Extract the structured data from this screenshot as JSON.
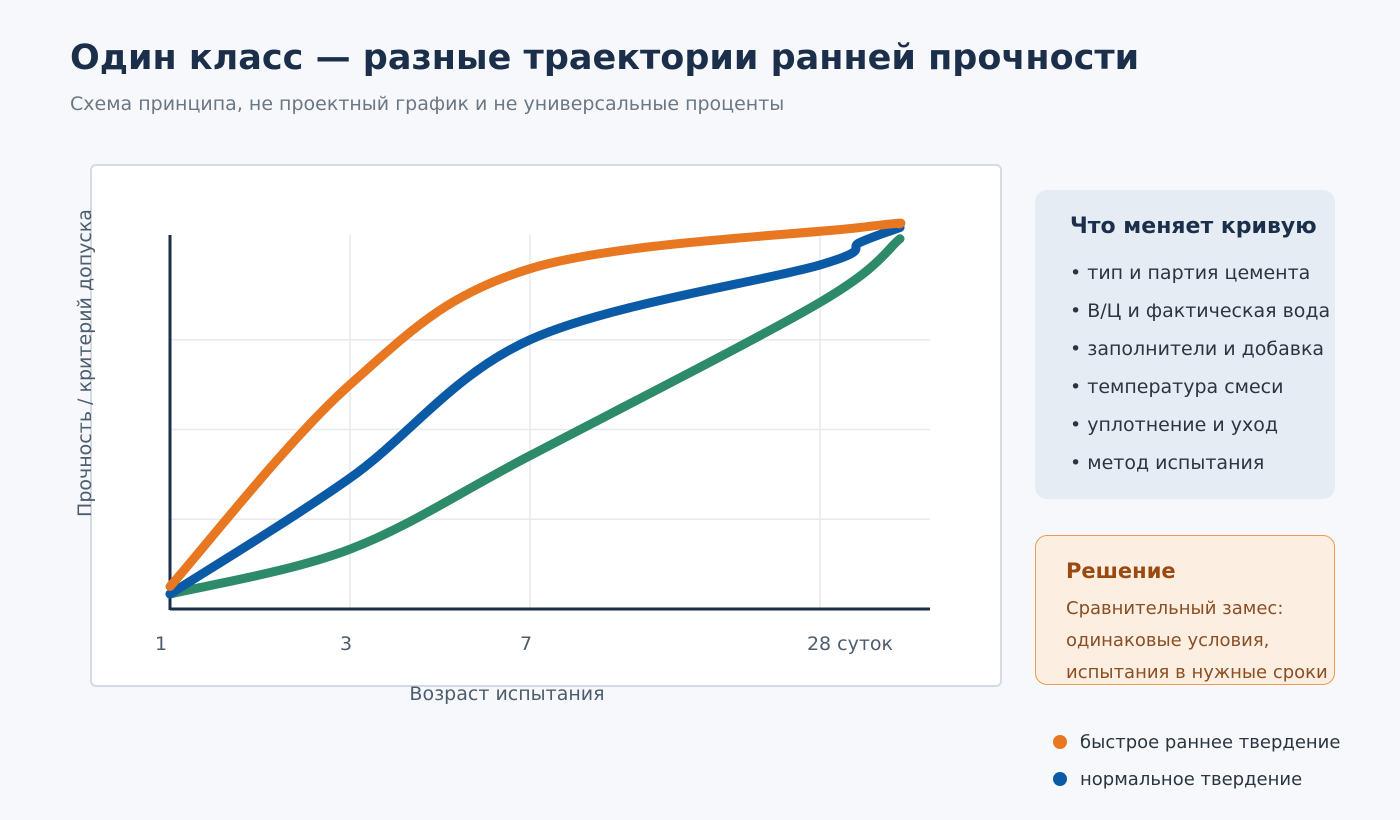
{
  "header": {
    "title": "Один класс — разные траектории ранней прочности",
    "subtitle": "Схема принципа, не проектный график и не универсальные проценты"
  },
  "chart_data": {
    "type": "line",
    "xlabel": "Возраст испытания",
    "ylabel": "Прочность / критерий допуска",
    "x_ticks": [
      "1",
      "3",
      "7",
      "28 суток"
    ],
    "ylim": [
      0,
      100
    ],
    "grid": true,
    "legend_position": "bottom-right",
    "series": [
      {
        "name": "быстрое раннее твердение",
        "color": "#e87722",
        "points": [
          [
            0,
            6
          ],
          [
            1,
            60
          ],
          [
            2,
            91
          ],
          [
            3.5,
            102
          ],
          [
            4,
            103
          ]
        ]
      },
      {
        "name": "нормальное твердение",
        "color": "#0b5aa6",
        "points": [
          [
            0,
            4
          ],
          [
            1,
            35
          ],
          [
            2,
            72
          ],
          [
            3,
            92
          ],
          [
            3.5,
            98
          ],
          [
            4,
            102
          ]
        ]
      },
      {
        "name": "",
        "color": "#2e8b6a",
        "points": [
          [
            0,
            4
          ],
          [
            1,
            16
          ],
          [
            2,
            41
          ],
          [
            3,
            82
          ],
          [
            4,
            99
          ]
        ]
      }
    ]
  },
  "info_panel": {
    "title": "Что меняет кривую",
    "items": [
      "• тип и партия цемента",
      "• В/Ц и фактическая вода",
      "• заполнители и добавка",
      "• температура смеси",
      "• уплотнение и уход",
      "• метод испытания"
    ]
  },
  "decision_panel": {
    "title": "Решение",
    "lines": [
      "Сравнительный замес:",
      "одинаковые условия,",
      "испытания в нужные сроки"
    ]
  }
}
